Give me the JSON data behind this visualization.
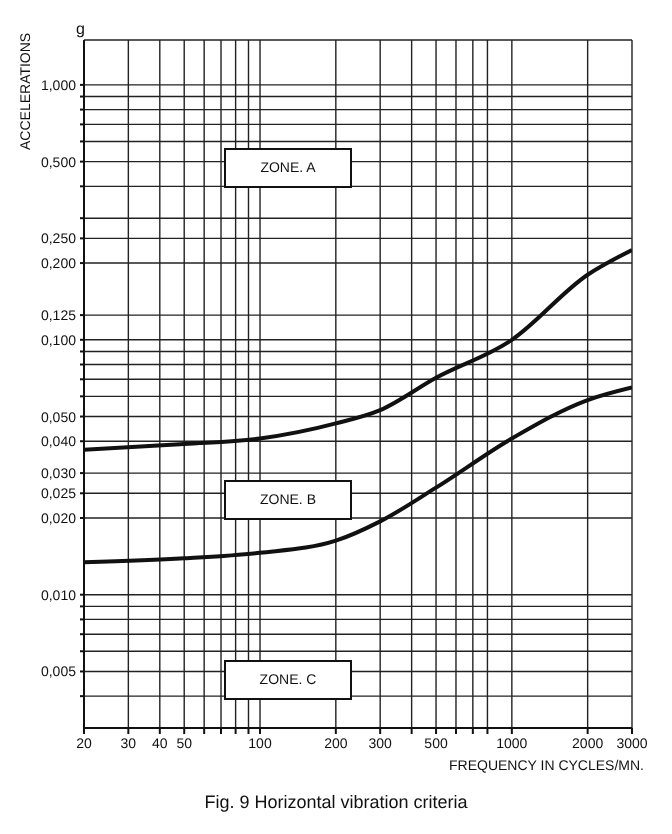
{
  "chart_data": {
    "type": "line",
    "title": "Fig. 9   Horizontal vibration criteria",
    "xlabel": "FREQUENCY IN CYCLES/MN.",
    "ylabel": "ACCELERATIONS",
    "annotations": [
      "g",
      "ZONE. A",
      "ZONE. B",
      "ZONE. C"
    ],
    "x": [
      20,
      50,
      100,
      200,
      300,
      500,
      1000,
      2000,
      3000
    ],
    "series": [
      {
        "color": "#111111",
        "values": [
          0.037,
          0.039,
          0.041,
          0.047,
          0.053,
          0.071,
          0.1,
          0.18,
          0.225
        ]
      },
      {
        "color": "#111111",
        "values": [
          0.0134,
          0.0139,
          0.0146,
          0.0163,
          0.0194,
          0.0263,
          0.041,
          0.058,
          0.065
        ]
      }
    ],
    "log": "xy",
    "grid": true,
    "marker": "none",
    "line_style": "solid",
    "xlim": [
      20,
      3000
    ],
    "ylim": [
      0.003,
      1.5
    ],
    "xticks": [
      20,
      30,
      40,
      50,
      {
        "value": 60,
        "label": null
      },
      {
        "value": 70,
        "label": null
      },
      {
        "value": 80,
        "label": null
      },
      {
        "value": 90,
        "label": null
      },
      100,
      200,
      300,
      {
        "value": 400,
        "label": null
      },
      500,
      {
        "value": 600,
        "label": null
      },
      {
        "value": 700,
        "label": null
      },
      {
        "value": 800,
        "label": null
      },
      1000,
      2000,
      3000
    ],
    "yticks": [
      {
        "value": 0.004,
        "label": null
      },
      {
        "value": 0.005,
        "label": "0,005"
      },
      {
        "value": 0.006,
        "label": null
      },
      {
        "value": 0.007,
        "label": null
      },
      {
        "value": 0.008,
        "label": null
      },
      {
        "value": 0.009,
        "label": null
      },
      {
        "value": 0.01,
        "label": "0,010"
      },
      {
        "value": 0.02,
        "label": "0,020"
      },
      {
        "value": 0.025,
        "label": "0,025"
      },
      {
        "value": 0.03,
        "label": "0,030"
      },
      {
        "value": 0.04,
        "label": "0,040"
      },
      {
        "value": 0.05,
        "label": "0,050"
      },
      {
        "value": 0.06,
        "label": null
      },
      {
        "value": 0.07,
        "label": null
      },
      {
        "value": 0.08,
        "label": null
      },
      {
        "value": 0.09,
        "label": null
      },
      {
        "value": 0.1,
        "label": "0,100"
      },
      {
        "value": 0.125,
        "label": "0,125"
      },
      {
        "value": 0.2,
        "label": "0,200"
      },
      {
        "value": 0.25,
        "label": "0,250"
      },
      {
        "value": 0.3,
        "label": null
      },
      {
        "value": 0.4,
        "label": null
      },
      {
        "value": 0.5,
        "label": "0,500"
      },
      {
        "value": 0.6,
        "label": null
      },
      {
        "value": 0.7,
        "label": null
      },
      {
        "value": 0.8,
        "label": null
      },
      {
        "value": 0.9,
        "label": null
      },
      {
        "value": 1,
        "label": "1,000"
      }
    ]
  }
}
